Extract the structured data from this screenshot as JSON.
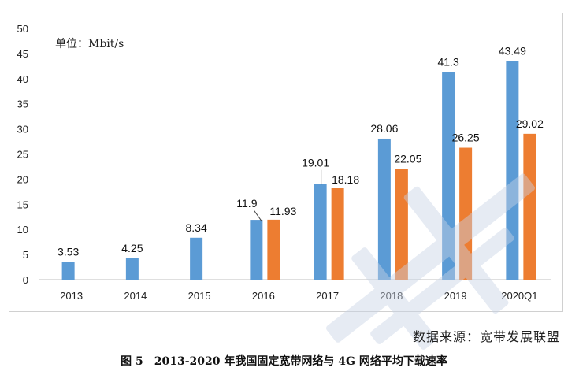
{
  "chart_data": {
    "type": "bar",
    "unit_label": "单位：Mbit/s",
    "categories": [
      "2013",
      "2014",
      "2015",
      "2016",
      "2017",
      "2018",
      "2019",
      "2020Q1"
    ],
    "series": [
      {
        "values": [
          3.53,
          4.25,
          8.34,
          11.9,
          19.01,
          28.06,
          41.3,
          43.49
        ],
        "color": "#5b9bd5"
      },
      {
        "values": [
          null,
          null,
          null,
          11.93,
          18.18,
          22.05,
          26.25,
          29.02
        ],
        "color": "#ed7d31"
      }
    ],
    "value_labels": [
      [
        "3.53",
        "4.25",
        "8.34",
        "11.9",
        "19.01",
        "28.06",
        "41.3",
        "43.49"
      ],
      [
        "",
        "",
        "",
        "11.93",
        "18.18",
        "22.05",
        "26.25",
        "29.02"
      ]
    ],
    "y_ticks": [
      "0",
      "5",
      "10",
      "15",
      "20",
      "25",
      "30",
      "35",
      "40",
      "45",
      "50"
    ],
    "ylim": [
      0,
      50
    ],
    "grid": false,
    "legend": "none"
  },
  "source": "数据来源：宽带发展联盟",
  "caption": "图 5　2013-2020 年我国固定宽带网络与 4G 网络平均下载速率"
}
